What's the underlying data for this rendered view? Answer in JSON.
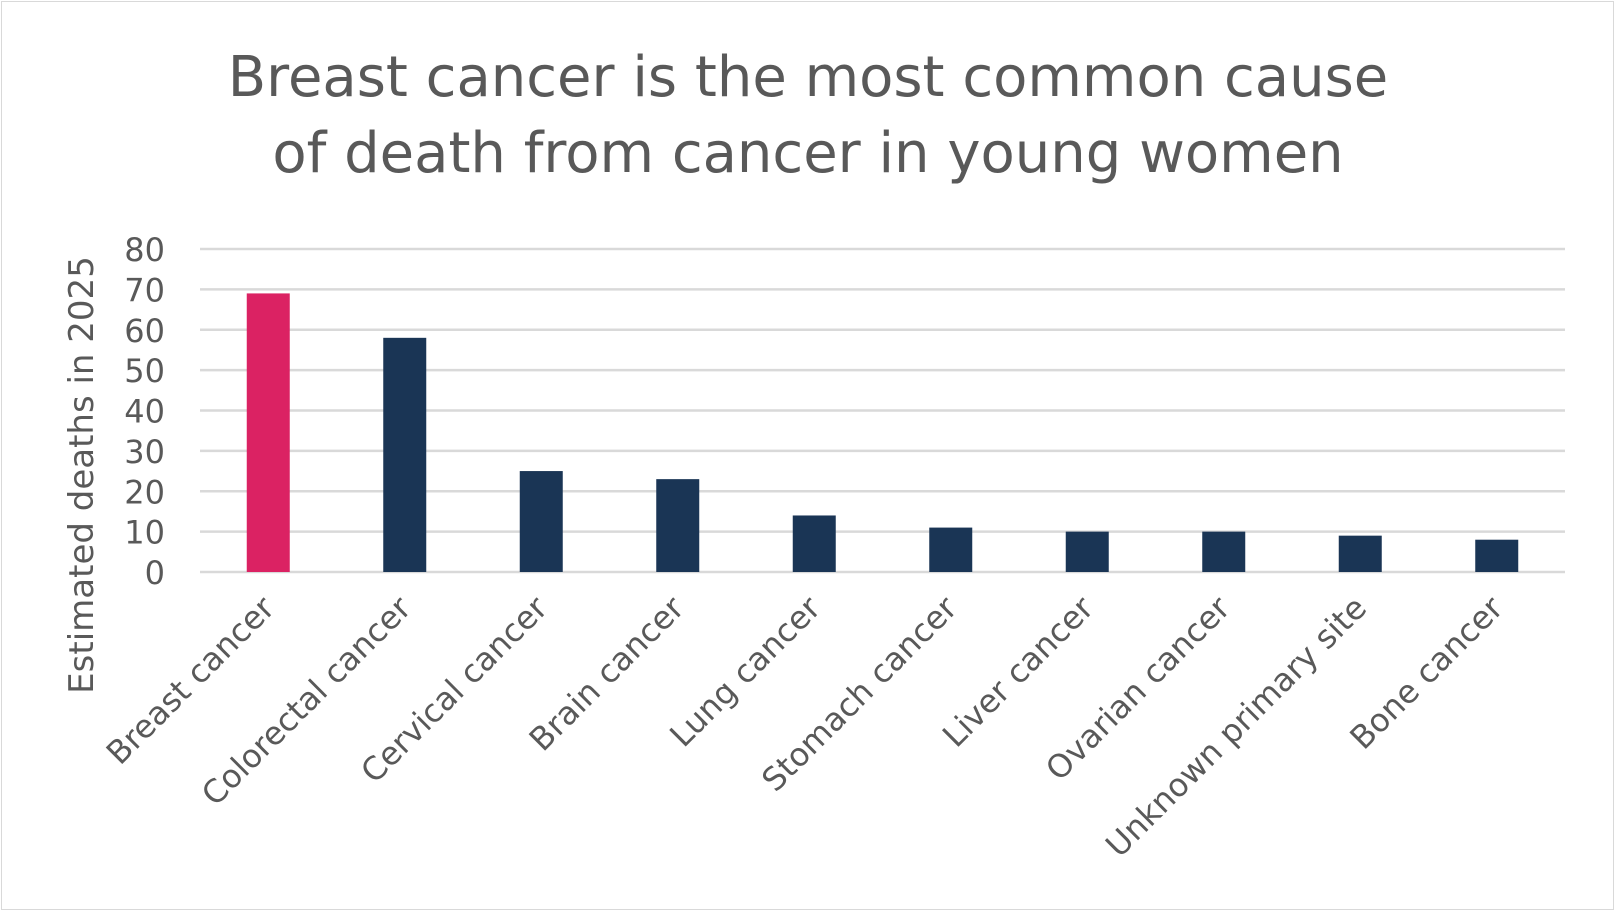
{
  "chart_data": {
    "type": "bar",
    "title_lines": [
      "Breast cancer is the most common cause",
      "of death from cancer in young women"
    ],
    "xlabel": "",
    "ylabel": "Estimated deaths in 2025",
    "ylim": [
      0,
      80
    ],
    "yticks": [
      0,
      10,
      20,
      30,
      40,
      50,
      60,
      70,
      80
    ],
    "grid": true,
    "categories": [
      "Breast cancer",
      "Colorectal cancer",
      "Cervical cancer",
      "Brain cancer",
      "Lung cancer",
      "Stomach cancer",
      "Liver cancer",
      "Ovarian cancer",
      "Unknown primary site",
      "Bone cancer"
    ],
    "values": [
      69,
      58,
      25,
      23,
      14,
      11,
      10,
      10,
      9,
      8
    ],
    "highlight_color": "#DB2263",
    "bar_color": "#1A3555",
    "grid_color": "#D9D9D9"
  }
}
